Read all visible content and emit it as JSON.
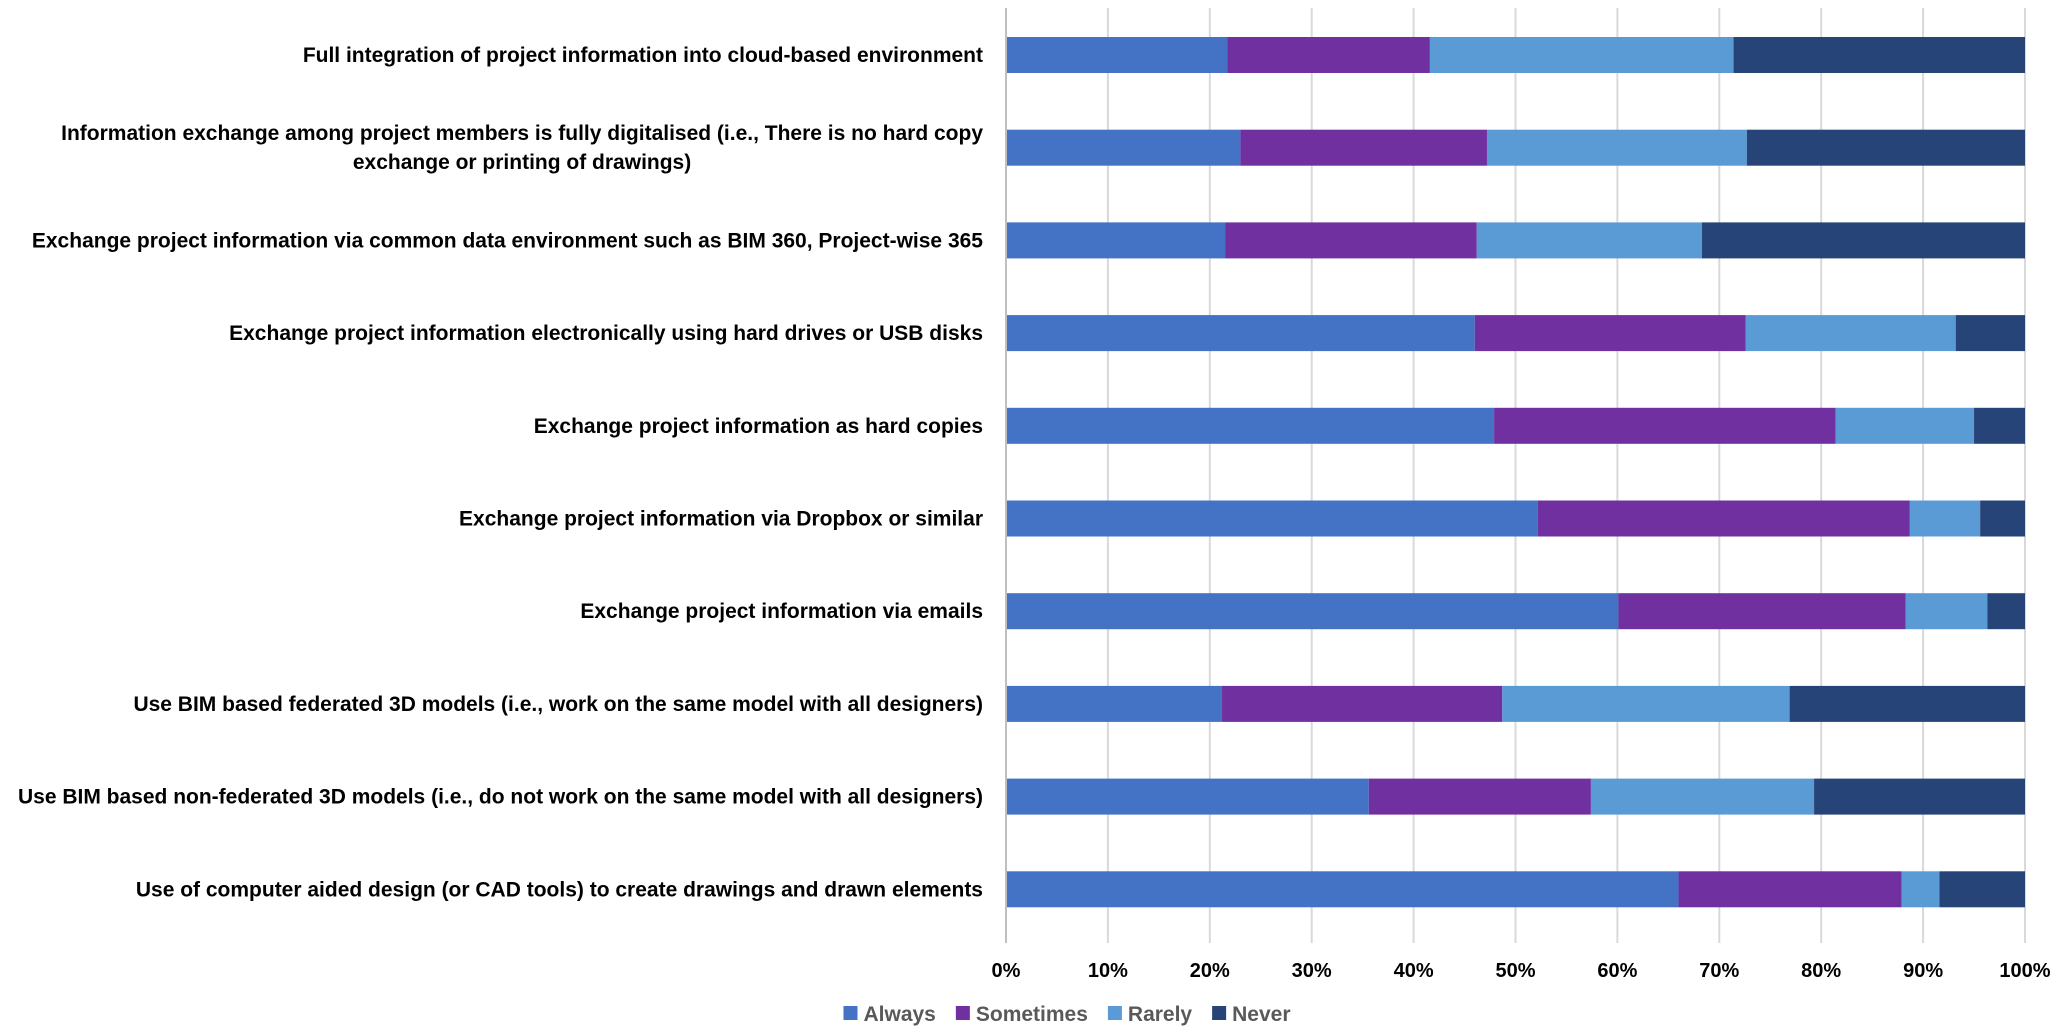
{
  "chart_data": {
    "type": "bar",
    "orientation": "horizontal",
    "stacking": "percent",
    "title": "",
    "xlabel": "",
    "ylabel": "",
    "xlim": [
      0,
      100
    ],
    "x_ticks": [
      "0%",
      "10%",
      "20%",
      "30%",
      "40%",
      "50%",
      "60%",
      "70%",
      "80%",
      "90%",
      "100%"
    ],
    "grid": "vertical",
    "legend_position": "bottom",
    "categories": [
      [
        "Full integration of project information into cloud-based environment"
      ],
      [
        "Information exchange among project members is fully digitalised (i.e., There is no hard copy",
        "exchange or printing of drawings)"
      ],
      [
        "Exchange project information via common data environment such as BIM 360, Project-wise 365"
      ],
      [
        "Exchange project information electronically using hard drives or USB disks"
      ],
      [
        "Exchange project information as hard copies"
      ],
      [
        "Exchange project information via Dropbox or similar"
      ],
      [
        "Exchange project information via emails"
      ],
      [
        "Use BIM based federated 3D models (i.e., work on the same model with all designers)"
      ],
      [
        "Use BIM based non-federated 3D models (i.e., do not work on the same model with all designers)"
      ],
      [
        "Use of computer aided design (or CAD tools) to create drawings and drawn elements"
      ]
    ],
    "series": [
      {
        "name": "Always",
        "color": "#4472C4",
        "values": [
          21.7,
          23.0,
          21.5,
          46.0,
          47.9,
          52.2,
          60.1,
          21.2,
          35.6,
          66.0
        ]
      },
      {
        "name": "Sometimes",
        "color": "#7030A0",
        "values": [
          19.9,
          24.2,
          24.7,
          26.6,
          33.5,
          36.5,
          28.2,
          27.5,
          21.8,
          21.9
        ]
      },
      {
        "name": "Rarely",
        "color": "#5B9BD5",
        "values": [
          29.8,
          25.5,
          22.1,
          20.6,
          13.6,
          6.9,
          8.0,
          28.2,
          21.9,
          3.7
        ]
      },
      {
        "name": "Never",
        "color": "#264478",
        "values": [
          28.6,
          27.3,
          31.7,
          6.8,
          5.0,
          4.4,
          3.7,
          23.1,
          20.7,
          8.4
        ]
      }
    ]
  }
}
